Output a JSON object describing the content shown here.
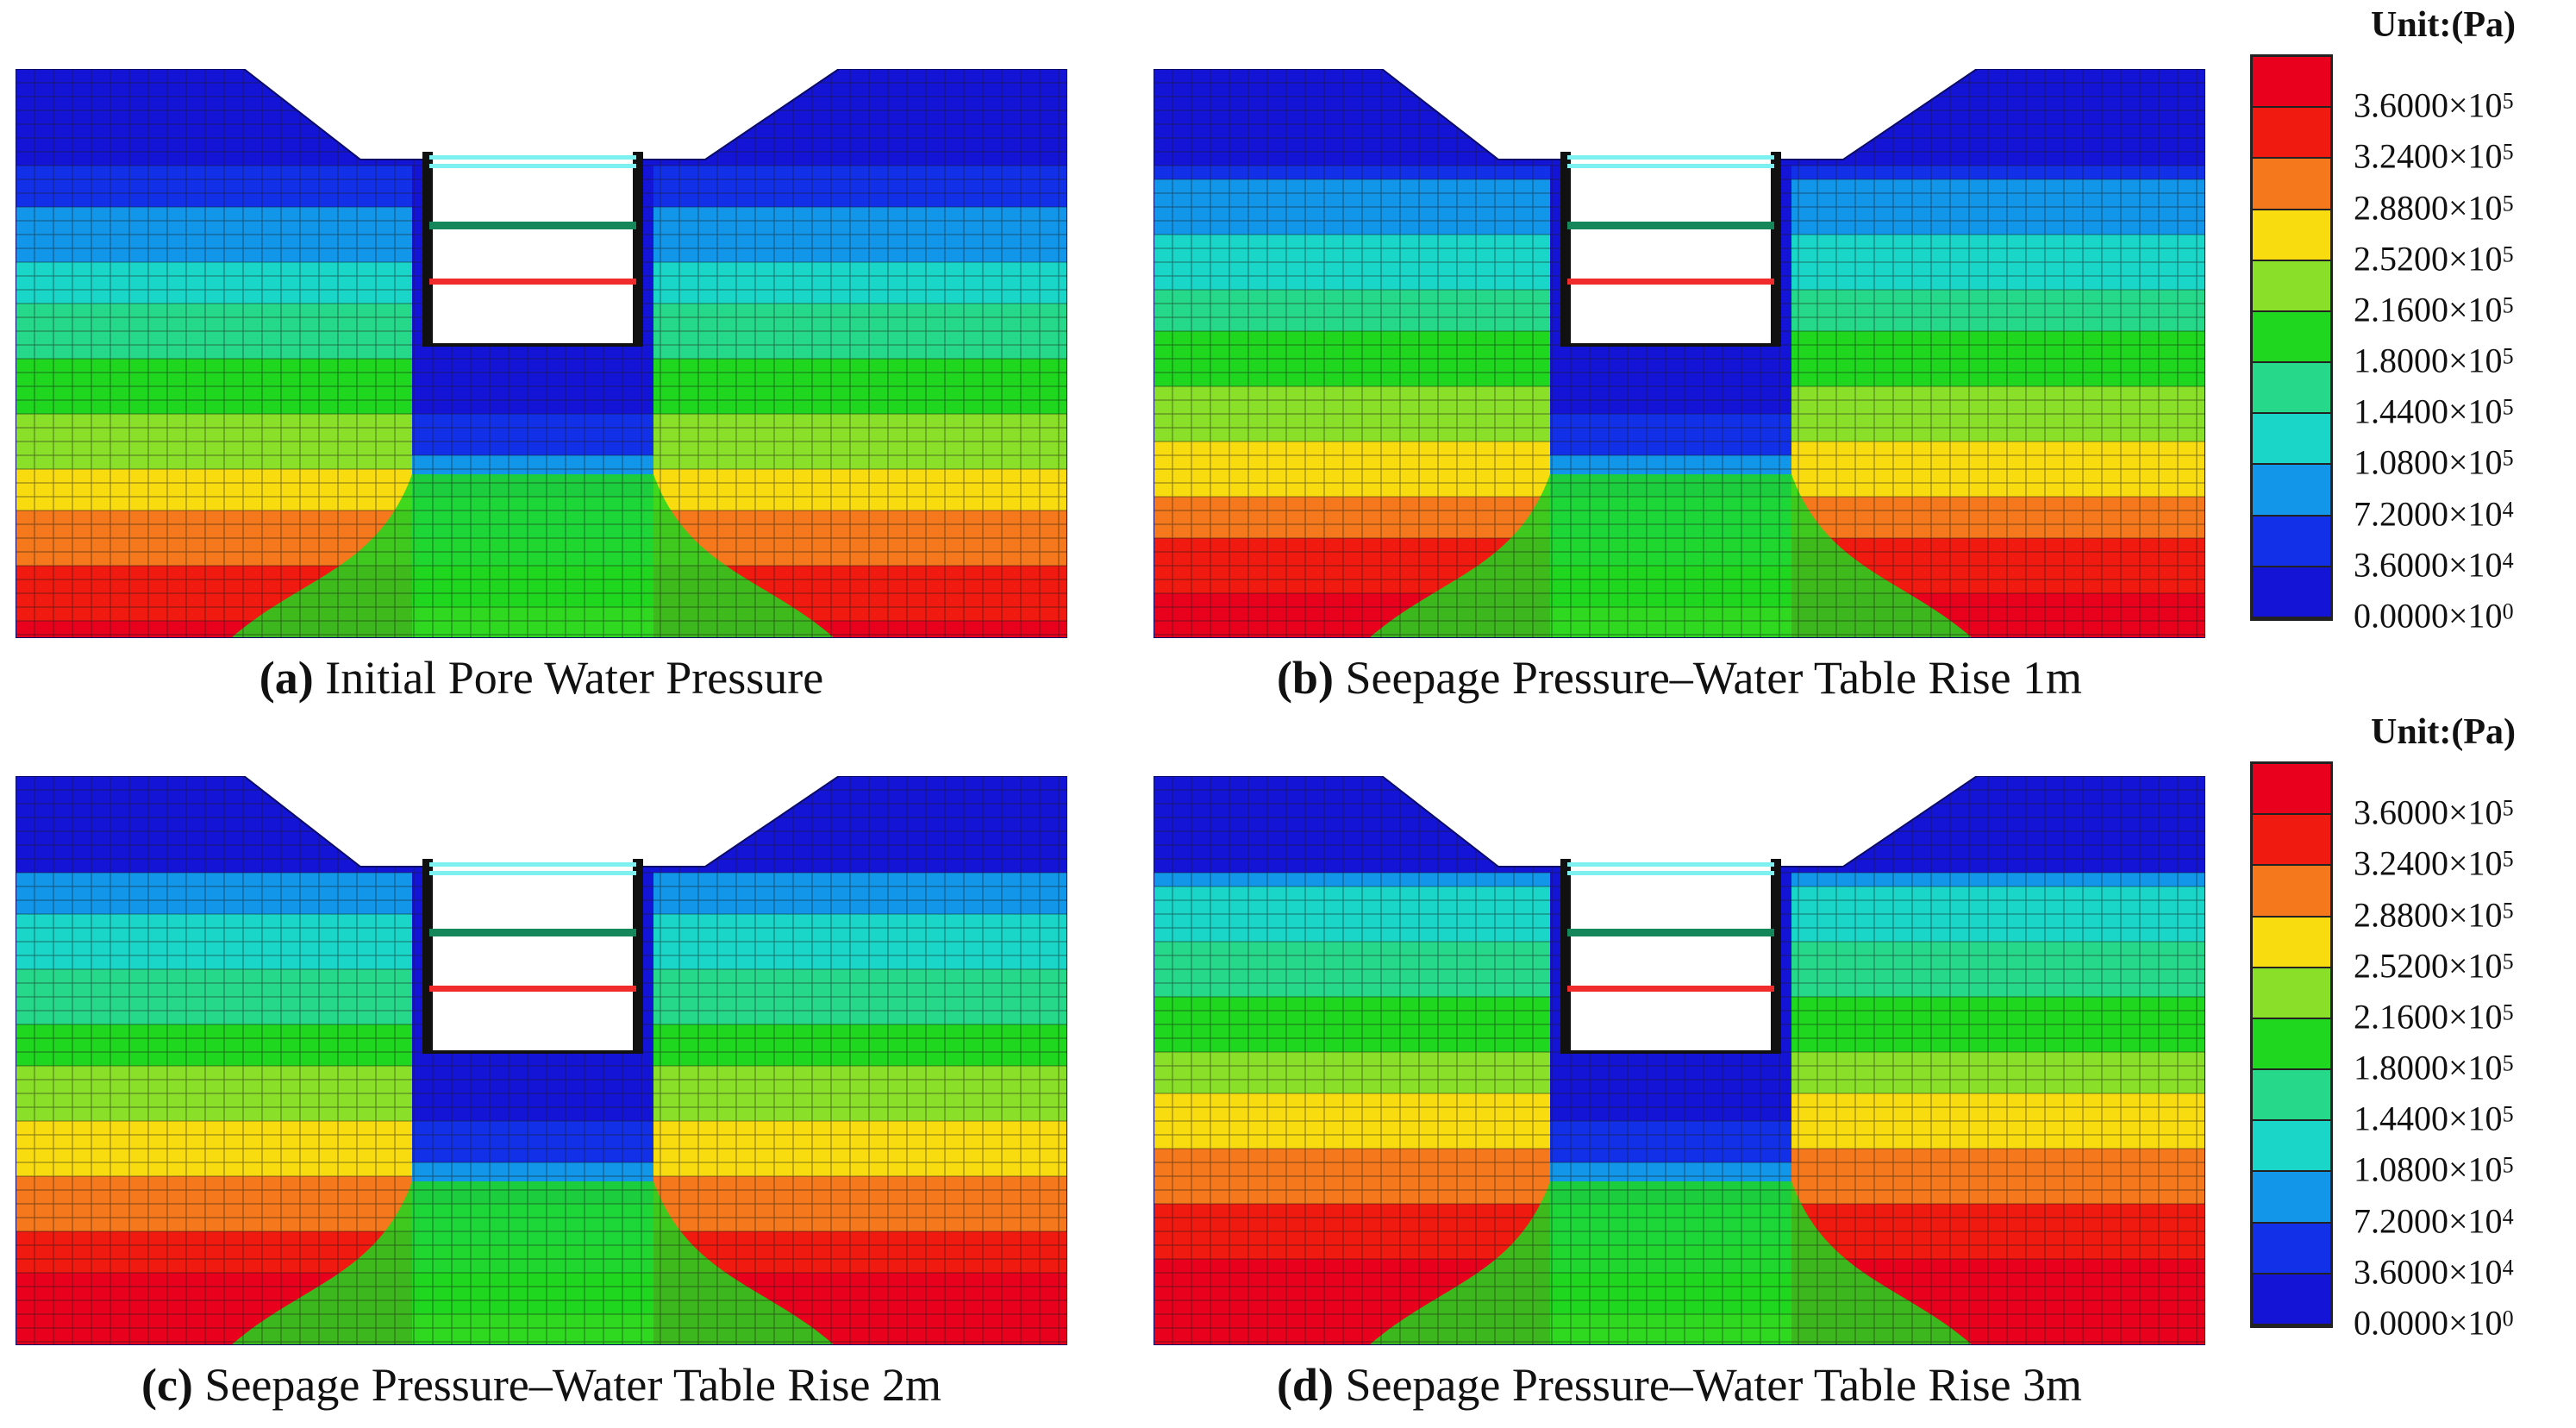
{
  "panels": [
    {
      "id": "a",
      "letter": "(a)",
      "caption": "Initial Pore Water Pressure",
      "rise": 0
    },
    {
      "id": "b",
      "letter": "(b)",
      "caption": "Seepage Pressure–Water Table Rise 1m",
      "rise": 1
    },
    {
      "id": "c",
      "letter": "(c)",
      "caption": "Seepage Pressure–Water Table Rise 2m",
      "rise": 2
    },
    {
      "id": "d",
      "letter": "(d)",
      "caption": "Seepage Pressure–Water Table Rise 3m",
      "rise": 3
    }
  ],
  "legend": {
    "unit": "Unit:(Pa)",
    "ticks": [
      {
        "mant": "3.6000",
        "exp": "5"
      },
      {
        "mant": "3.2400",
        "exp": "5"
      },
      {
        "mant": "2.8800",
        "exp": "5"
      },
      {
        "mant": "2.5200",
        "exp": "5"
      },
      {
        "mant": "2.1600",
        "exp": "5"
      },
      {
        "mant": "1.8000",
        "exp": "5"
      },
      {
        "mant": "1.4400",
        "exp": "5"
      },
      {
        "mant": "1.0800",
        "exp": "5"
      },
      {
        "mant": "7.2000",
        "exp": "4"
      },
      {
        "mant": "3.6000",
        "exp": "4"
      },
      {
        "mant": "0.0000",
        "exp": "0"
      }
    ],
    "colors_top_to_bottom": [
      "#e8001c",
      "#f01a10",
      "#f5781c",
      "#f8dc10",
      "#8ae028",
      "#1ed71e",
      "#25d88a",
      "#19d6c8",
      "#1296ea",
      "#1230e8",
      "#1414d6"
    ]
  },
  "colors": {
    "strut_top": "#7df0f0",
    "strut_mid": "#15875a",
    "strut_low": "#ef2b2b",
    "wall": "#111111",
    "mesh": "#1a1a1a"
  }
}
